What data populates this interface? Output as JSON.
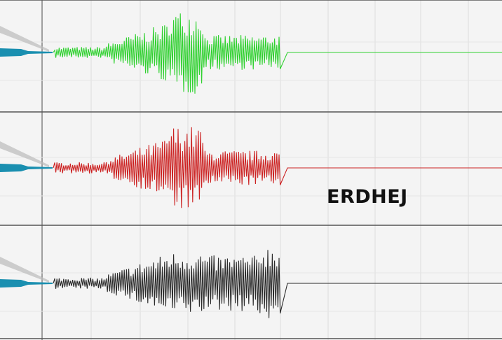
{
  "caption": "ERDHEJ",
  "traces": [
    {
      "color": "#2fd12f"
    },
    {
      "color": "#cc2222"
    },
    {
      "color": "#2a2a2a"
    }
  ],
  "needle_color": "#1a8fb0"
}
